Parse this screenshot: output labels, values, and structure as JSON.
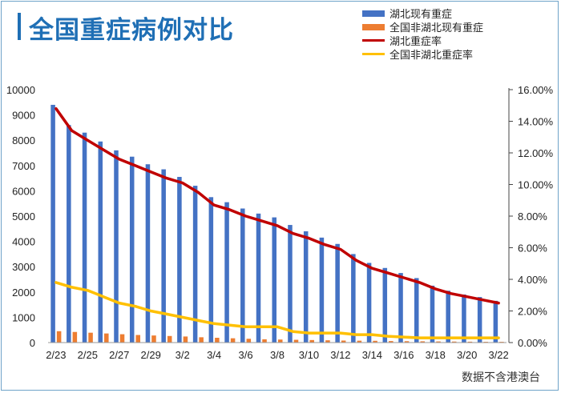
{
  "title": "全国重症病例对比",
  "source_note": "数据不含港澳台",
  "colors": {
    "hubei_bar": "#4472c4",
    "non_hubei_bar": "#ed7d31",
    "hubei_rate": "#c00000",
    "non_hubei_rate": "#ffc000",
    "title": "#1f6fb5"
  },
  "chart_data": {
    "type": "bar",
    "categories": [
      "2/23",
      "2/24",
      "2/25",
      "2/26",
      "2/27",
      "2/28",
      "2/29",
      "3/1",
      "3/2",
      "3/3",
      "3/4",
      "3/5",
      "3/6",
      "3/7",
      "3/8",
      "3/9",
      "3/10",
      "3/11",
      "3/12",
      "3/13",
      "3/14",
      "3/15",
      "3/16",
      "3/17",
      "3/18",
      "3/19",
      "3/20",
      "3/21",
      "3/22"
    ],
    "x_tick_labels": [
      "2/23",
      "2/25",
      "2/27",
      "2/29",
      "3/2",
      "3/4",
      "3/6",
      "3/8",
      "3/10",
      "3/12",
      "3/14",
      "3/16",
      "3/18",
      "3/20",
      "3/22"
    ],
    "y_left_ticks": [
      "0",
      "1000",
      "2000",
      "3000",
      "4000",
      "5000",
      "6000",
      "7000",
      "8000",
      "9000",
      "10000"
    ],
    "y_right_ticks": [
      "0.00%",
      "2.00%",
      "4.00%",
      "6.00%",
      "8.00%",
      "10.00%",
      "12.00%",
      "14.00%",
      "16.00%"
    ],
    "ylim_left": [
      0,
      10000
    ],
    "ylim_right": [
      0,
      16
    ],
    "series": [
      {
        "name": "湖北现有重症",
        "kind": "bar",
        "axis": "left",
        "values": [
          9400,
          8600,
          8300,
          7950,
          7600,
          7350,
          7050,
          6850,
          6550,
          6200,
          5750,
          5550,
          5300,
          5100,
          4950,
          4650,
          4400,
          4150,
          3900,
          3500,
          3150,
          2950,
          2750,
          2550,
          2250,
          2050,
          1900,
          1800,
          1650
        ]
      },
      {
        "name": "全国非湖北现有重症",
        "kind": "bar",
        "axis": "left",
        "values": [
          450,
          420,
          390,
          360,
          330,
          300,
          280,
          260,
          240,
          210,
          190,
          170,
          150,
          130,
          120,
          110,
          100,
          90,
          80,
          75,
          70,
          60,
          55,
          50,
          45,
          40,
          35,
          30,
          30
        ]
      },
      {
        "name": "湖北重症率",
        "kind": "line",
        "axis": "right",
        "values": [
          14.8,
          13.4,
          12.8,
          12.2,
          11.6,
          11.2,
          10.8,
          10.4,
          10.1,
          9.5,
          8.7,
          8.4,
          8.0,
          7.7,
          7.4,
          6.9,
          6.6,
          6.2,
          5.9,
          5.2,
          4.7,
          4.4,
          4.1,
          3.8,
          3.4,
          3.1,
          2.9,
          2.7,
          2.5
        ]
      },
      {
        "name": "全国非湖北重症率",
        "kind": "line",
        "axis": "right",
        "values": [
          3.8,
          3.5,
          3.3,
          2.9,
          2.5,
          2.3,
          2.0,
          1.8,
          1.6,
          1.4,
          1.2,
          1.1,
          1.0,
          1.0,
          1.0,
          0.7,
          0.6,
          0.6,
          0.6,
          0.5,
          0.5,
          0.4,
          0.35,
          0.3,
          0.3,
          0.3,
          0.3,
          0.3,
          0.3
        ]
      }
    ]
  }
}
